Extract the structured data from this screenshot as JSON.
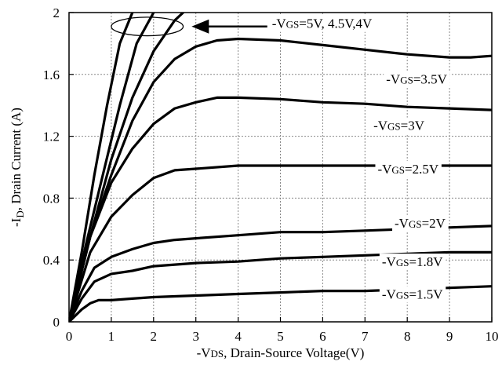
{
  "chart_data": {
    "type": "line",
    "xlabel": "-VDS, Drain-Source Voltage(V)",
    "xlabel_parts": {
      "prefix": "-V",
      "sub": "DS",
      "suffix": ", Drain-Source Voltage(V)"
    },
    "ylabel": "-ID, Drain Current (A)",
    "ylabel_parts": {
      "prefix": "-I",
      "sub": "D",
      "suffix": ", Drain Current (A)"
    },
    "xlim": [
      0,
      10
    ],
    "ylim": [
      0,
      2
    ],
    "x_ticks": [
      "0",
      "1",
      "2",
      "3",
      "4",
      "5",
      "6",
      "7",
      "8",
      "9",
      "10"
    ],
    "y_ticks": [
      "0",
      "0.4",
      "0.8",
      "1.2",
      "1.6",
      "2"
    ],
    "grid": true,
    "series": [
      {
        "name": "-VGS=5V",
        "points": [
          [
            0,
            0
          ],
          [
            0.3,
            0.45
          ],
          [
            0.6,
            0.95
          ],
          [
            0.9,
            1.4
          ],
          [
            1.2,
            1.8
          ],
          [
            1.5,
            2.0
          ]
        ]
      },
      {
        "name": "-VGS=4.5V",
        "points": [
          [
            0,
            0
          ],
          [
            0.4,
            0.5
          ],
          [
            0.8,
            0.95
          ],
          [
            1.2,
            1.4
          ],
          [
            1.6,
            1.8
          ],
          [
            2.0,
            2.0
          ]
        ]
      },
      {
        "name": "-VGS=4V",
        "points": [
          [
            0,
            0
          ],
          [
            0.5,
            0.55
          ],
          [
            1.0,
            1.05
          ],
          [
            1.5,
            1.45
          ],
          [
            2.0,
            1.75
          ],
          [
            2.5,
            1.95
          ],
          [
            2.7,
            2.0
          ]
        ]
      },
      {
        "name": "-VGS=3.5V",
        "points": [
          [
            0,
            0
          ],
          [
            0.5,
            0.55
          ],
          [
            1.0,
            0.95
          ],
          [
            1.5,
            1.3
          ],
          [
            2.0,
            1.55
          ],
          [
            2.5,
            1.7
          ],
          [
            3.0,
            1.78
          ],
          [
            3.5,
            1.82
          ],
          [
            4.0,
            1.83
          ],
          [
            5.0,
            1.82
          ],
          [
            6.0,
            1.79
          ],
          [
            7.0,
            1.76
          ],
          [
            8.0,
            1.73
          ],
          [
            9.0,
            1.71
          ],
          [
            9.5,
            1.71
          ],
          [
            10,
            1.72
          ]
        ]
      },
      {
        "name": "-VGS=3V",
        "points": [
          [
            0,
            0
          ],
          [
            0.5,
            0.55
          ],
          [
            1.0,
            0.9
          ],
          [
            1.5,
            1.12
          ],
          [
            2.0,
            1.28
          ],
          [
            2.5,
            1.38
          ],
          [
            3.0,
            1.42
          ],
          [
            3.5,
            1.45
          ],
          [
            4.0,
            1.45
          ],
          [
            5.0,
            1.44
          ],
          [
            6.0,
            1.42
          ],
          [
            7.0,
            1.41
          ],
          [
            8.0,
            1.39
          ],
          [
            9.0,
            1.38
          ],
          [
            10,
            1.37
          ]
        ]
      },
      {
        "name": "-VGS=2.5V",
        "points": [
          [
            0,
            0
          ],
          [
            0.5,
            0.45
          ],
          [
            1.0,
            0.68
          ],
          [
            1.5,
            0.82
          ],
          [
            2.0,
            0.93
          ],
          [
            2.5,
            0.98
          ],
          [
            3.0,
            0.99
          ],
          [
            4.0,
            1.01
          ],
          [
            5.0,
            1.01
          ],
          [
            6.0,
            1.01
          ],
          [
            7.0,
            1.01
          ],
          [
            8.0,
            1.01
          ],
          [
            9.0,
            1.01
          ],
          [
            10,
            1.01
          ]
        ]
      },
      {
        "name": "-VGS=2V",
        "points": [
          [
            0,
            0
          ],
          [
            0.3,
            0.2
          ],
          [
            0.6,
            0.35
          ],
          [
            1.0,
            0.42
          ],
          [
            1.5,
            0.47
          ],
          [
            2.0,
            0.51
          ],
          [
            2.5,
            0.53
          ],
          [
            3.0,
            0.54
          ],
          [
            4.0,
            0.56
          ],
          [
            5.0,
            0.58
          ],
          [
            6.0,
            0.58
          ],
          [
            7.0,
            0.59
          ],
          [
            8.0,
            0.6
          ],
          [
            9.0,
            0.61
          ],
          [
            10,
            0.62
          ]
        ]
      },
      {
        "name": "-VGS=1.8V",
        "points": [
          [
            0,
            0
          ],
          [
            0.3,
            0.15
          ],
          [
            0.6,
            0.26
          ],
          [
            1.0,
            0.31
          ],
          [
            1.5,
            0.33
          ],
          [
            2.0,
            0.36
          ],
          [
            3.0,
            0.38
          ],
          [
            4.0,
            0.39
          ],
          [
            5.0,
            0.41
          ],
          [
            6.0,
            0.42
          ],
          [
            7.0,
            0.43
          ],
          [
            8.0,
            0.44
          ],
          [
            9.0,
            0.45
          ],
          [
            10,
            0.45
          ]
        ]
      },
      {
        "name": "-VGS=1.5V",
        "points": [
          [
            0,
            0
          ],
          [
            0.3,
            0.08
          ],
          [
            0.5,
            0.12
          ],
          [
            0.7,
            0.14
          ],
          [
            1.0,
            0.14
          ],
          [
            1.5,
            0.15
          ],
          [
            2.0,
            0.16
          ],
          [
            3.0,
            0.17
          ],
          [
            4.0,
            0.18
          ],
          [
            5.0,
            0.19
          ],
          [
            6.0,
            0.2
          ],
          [
            7.0,
            0.2
          ],
          [
            8.0,
            0.21
          ],
          [
            9.0,
            0.22
          ],
          [
            10,
            0.23
          ]
        ]
      }
    ],
    "annotations": [
      {
        "label_prefix": "-V",
        "label_sub": "GS",
        "label_suffix": "=5V, 4.5V,4V",
        "x": 4.8,
        "y": 1.9
      },
      {
        "label_prefix": "-V",
        "label_sub": "GS",
        "label_suffix": "=3.5V",
        "x": 7.5,
        "y": 1.54
      },
      {
        "label_prefix": "-V",
        "label_sub": "GS",
        "label_suffix": "=3V",
        "x": 7.2,
        "y": 1.24
      },
      {
        "label_prefix": "-V",
        "label_sub": "GS",
        "label_suffix": "=2.5V",
        "x": 7.3,
        "y": 0.96
      },
      {
        "label_prefix": "-V",
        "label_sub": "GS",
        "label_suffix": "=2V",
        "x": 7.7,
        "y": 0.61
      },
      {
        "label_prefix": "-V",
        "label_sub": "GS",
        "label_suffix": "=1.8V",
        "x": 7.4,
        "y": 0.36
      },
      {
        "label_prefix": "-V",
        "label_sub": "GS",
        "label_suffix": "=1.5V",
        "x": 7.4,
        "y": 0.15
      }
    ],
    "arrow": {
      "from": [
        4.8,
        1.91
      ],
      "to": [
        2.9,
        1.91
      ]
    },
    "ellipse": {
      "cx": 1.85,
      "cy": 1.91,
      "rx": 0.85,
      "ry": 0.06
    },
    "colors": {
      "line": "#000000",
      "grid": "#888888",
      "background": "#ffffff"
    }
  }
}
